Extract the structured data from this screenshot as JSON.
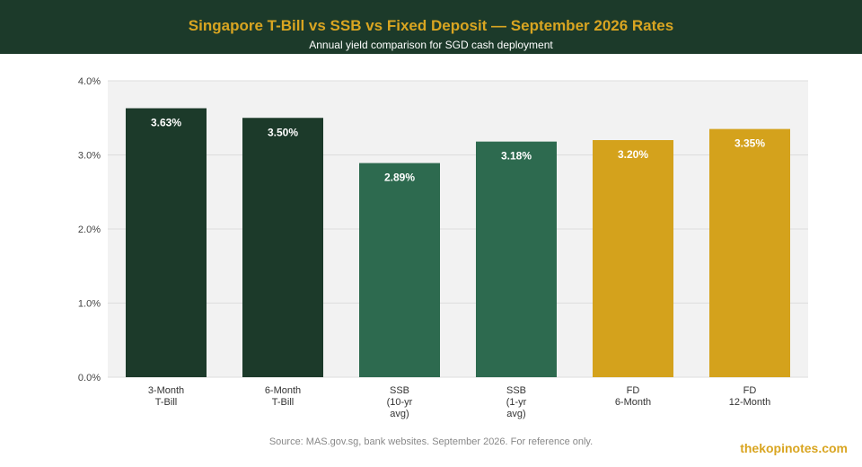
{
  "header": {
    "title": "Singapore T-Bill vs SSB vs Fixed Deposit — September 2026 Rates",
    "subtitle": "Annual yield comparison for SGD cash deployment"
  },
  "footer": {
    "source": "Source: MAS.gov.sg, bank websites. September 2026. For reference only.",
    "brand": "thekopinotes.com"
  },
  "colors": {
    "header_bg": "#1c3a2a",
    "accent": "#d9a521",
    "plot_bg": "#f2f2f2"
  },
  "chart_data": {
    "type": "bar",
    "title": "Singapore T-Bill vs SSB vs Fixed Deposit — September 2026 Rates",
    "subtitle": "Annual yield comparison for SGD cash deployment",
    "xlabel": "",
    "ylabel": "",
    "ylim": [
      0,
      4
    ],
    "yticks": [
      "0.0%",
      "1.0%",
      "2.0%",
      "3.0%",
      "4.0%"
    ],
    "grid": true,
    "categories": [
      [
        "3-Month",
        "T-Bill"
      ],
      [
        "6-Month",
        "T-Bill"
      ],
      [
        "SSB",
        "(10-yr",
        "avg)"
      ],
      [
        "SSB",
        "(1-yr",
        "avg)"
      ],
      [
        "FD",
        "6-Month"
      ],
      [
        "FD",
        "12-Month"
      ]
    ],
    "values": [
      3.63,
      3.5,
      2.89,
      3.18,
      3.2,
      3.35
    ],
    "labels": [
      "3.63%",
      "3.50%",
      "2.89%",
      "3.18%",
      "3.20%",
      "3.35%"
    ],
    "bar_colors": [
      "#1c3a2a",
      "#1c3a2a",
      "#2d6a4f",
      "#2d6a4f",
      "#d4a21c",
      "#d4a21c"
    ]
  }
}
